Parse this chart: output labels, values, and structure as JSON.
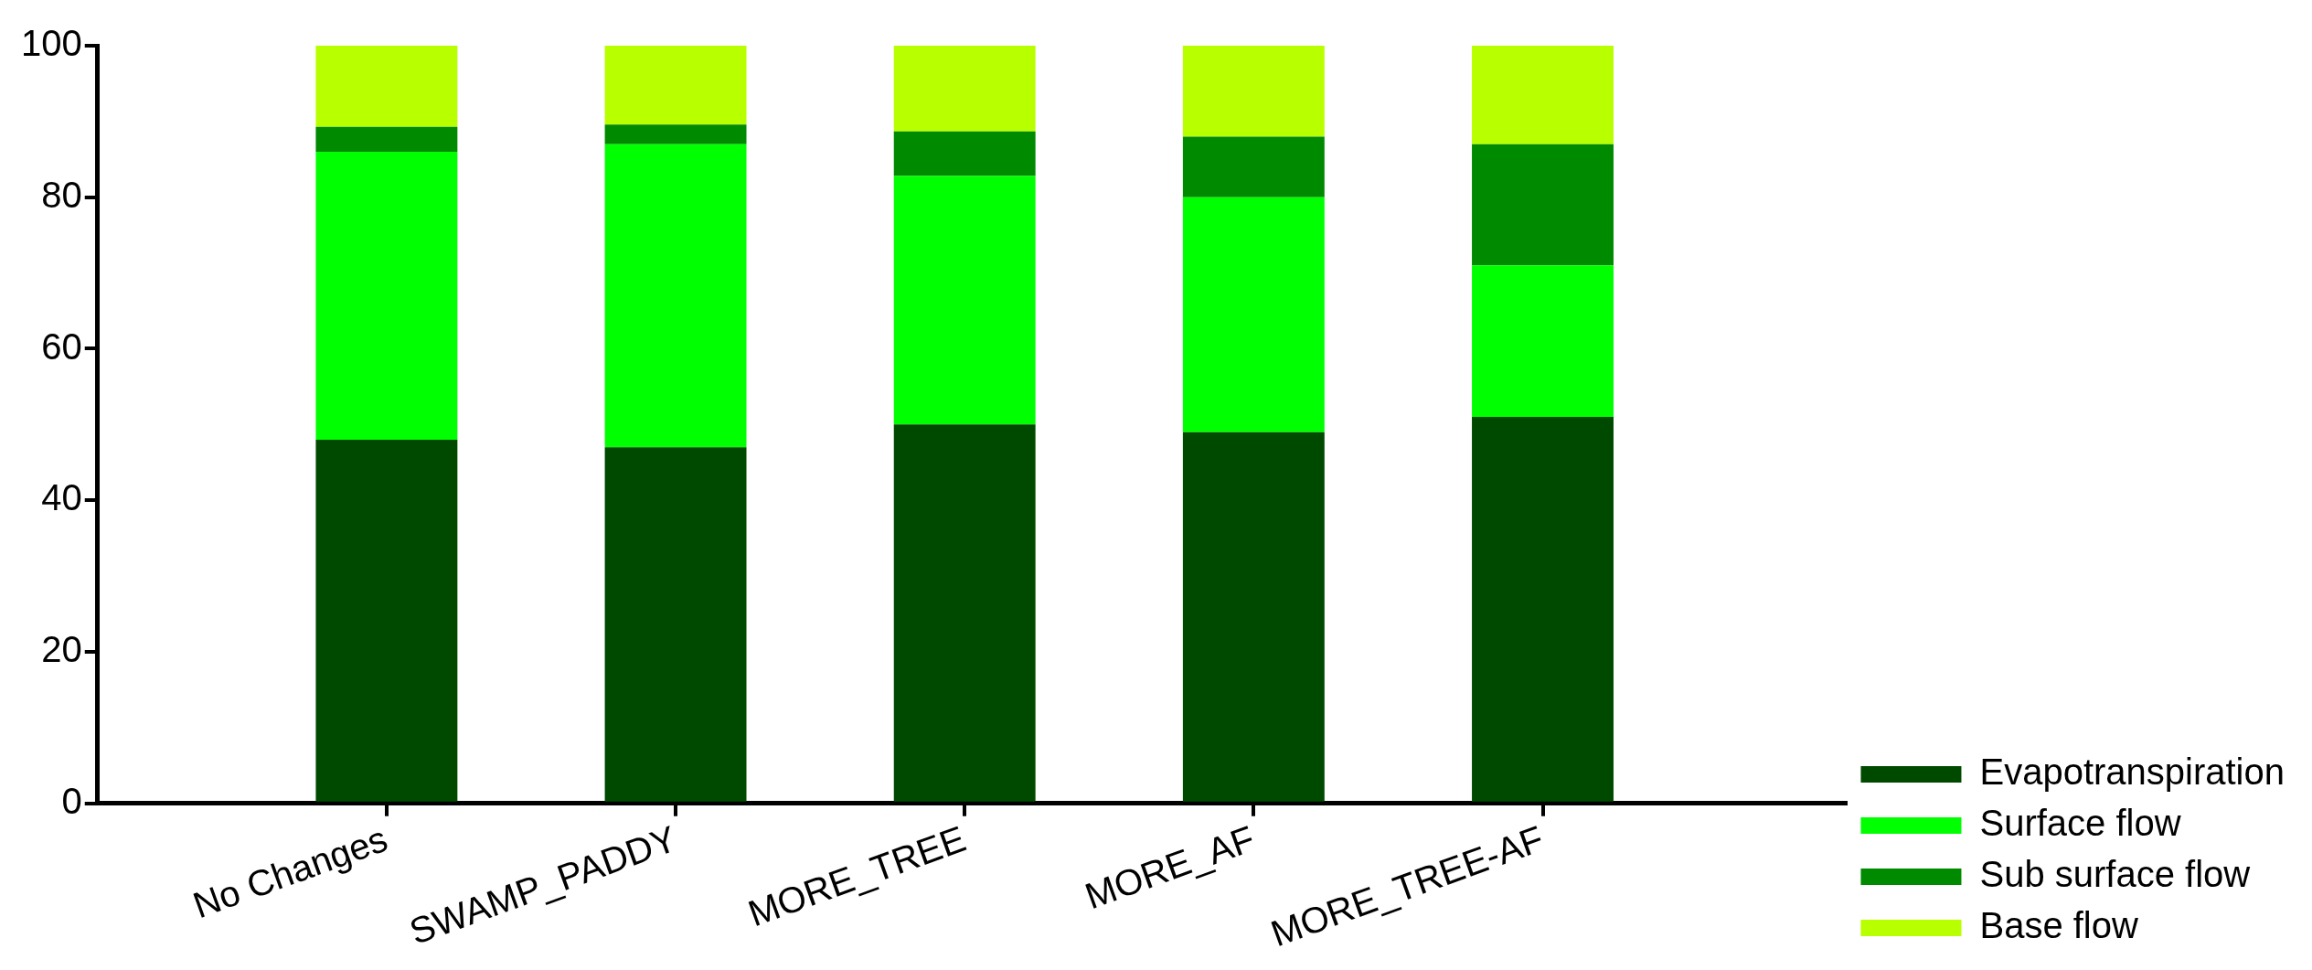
{
  "chart_data": {
    "type": "bar",
    "stacked": true,
    "categories": [
      "No Changes",
      "SWAMP_PADDY",
      "MORE_TREE",
      "MORE_AF",
      "MORE_TREE-AF"
    ],
    "series": [
      {
        "name": "Evapotranspiration",
        "color": "#004a00",
        "values": [
          48,
          47,
          50,
          49,
          51
        ]
      },
      {
        "name": "Surface flow",
        "color": "#00ff00",
        "values": [
          38,
          40,
          32.8,
          31,
          20
        ]
      },
      {
        "name": "Sub surface flow",
        "color": "#008a00",
        "values": [
          3.3,
          2.6,
          5.9,
          8,
          16
        ]
      },
      {
        "name": "Base flow",
        "color": "#b8ff00",
        "values": [
          10.7,
          10.4,
          11.3,
          12,
          13
        ]
      }
    ],
    "ylim": [
      0,
      100
    ],
    "yticks": [
      0,
      20,
      40,
      60,
      80,
      100
    ],
    "grid": false,
    "legend": "right"
  }
}
